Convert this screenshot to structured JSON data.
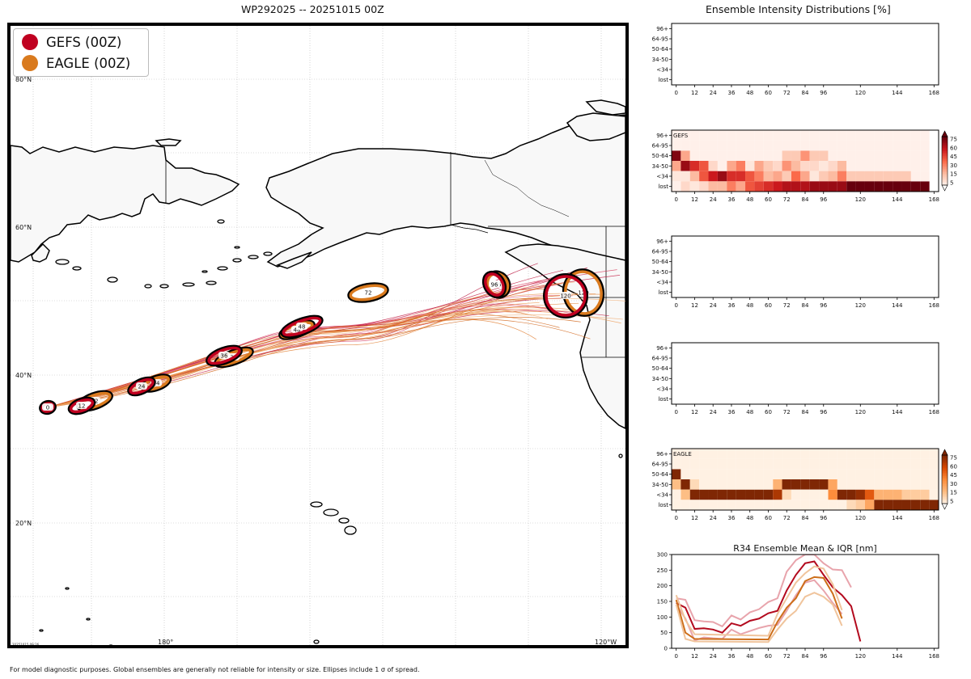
{
  "map_title": "WP292025 -- 20251015 00Z",
  "right_title": "Ensemble Intensity Distributions [%]",
  "legend": [
    {
      "label": "GEFS (00Z)",
      "color": "#c00020"
    },
    {
      "label": "EAGLE (00Z)",
      "color": "#d97a1e"
    }
  ],
  "lat_labels": [
    "80°N",
    "60°N",
    "40°N",
    "20°N"
  ],
  "lon_labels": [
    "180°",
    "120°W"
  ],
  "footer": "For model diagnostic purposes. Global ensembles are generally not reliable for intensity or size. Ellipses include 1 σ of spread.",
  "stamp": "20251015 09:26",
  "chart_data": [
    {
      "type": "map",
      "title": "WP292025 -- 20251015 00Z",
      "series": [
        {
          "name": "GEFS (00Z)",
          "color": "#c00020",
          "track_hours": [
            "0",
            "12",
            "24",
            "36",
            "48",
            "96",
            "120"
          ]
        },
        {
          "name": "EAGLE (00Z)",
          "color": "#d97a1e",
          "track_hours": [
            "0",
            "12",
            "24",
            "36",
            "48",
            "72",
            "96",
            "120"
          ]
        }
      ]
    },
    {
      "type": "heatmap",
      "label": "",
      "colorbar": false,
      "y_categories": [
        "96+",
        "64-95",
        "50-64",
        "34-50",
        "<34",
        "lost"
      ],
      "x_ticks": [
        "0",
        "12",
        "24",
        "36",
        "48",
        "60",
        "72",
        "84",
        "96",
        "120",
        "144",
        "168"
      ],
      "x_range": [
        -3,
        171
      ],
      "cells": []
    },
    {
      "type": "heatmap",
      "label": "GEFS",
      "colormap": "Reds",
      "colorbar": true,
      "colorbar_ticks": [
        "75",
        "60",
        "45",
        "30",
        "15",
        "5"
      ],
      "y_categories": [
        "96+",
        "64-95",
        "50-64",
        "34-50",
        "<34",
        "lost"
      ],
      "x_ticks": [
        "0",
        "12",
        "24",
        "36",
        "48",
        "60",
        "72",
        "84",
        "96",
        "120",
        "144",
        "168"
      ],
      "x_range": [
        -3,
        171
      ],
      "cells": [
        {
          "hour": 0,
          "cat": "50-64",
          "pct": 75
        },
        {
          "hour": 0,
          "cat": "34-50",
          "pct": 25
        },
        {
          "hour": 0,
          "cat": "<34",
          "pct": 5
        },
        {
          "hour": 6,
          "cat": "50-64",
          "pct": 25
        },
        {
          "hour": 6,
          "cat": "34-50",
          "pct": 70
        },
        {
          "hour": 6,
          "cat": "<34",
          "pct": 5
        },
        {
          "hour": 6,
          "cat": "lost",
          "pct": 10
        },
        {
          "hour": 12,
          "cat": "34-50",
          "pct": 55
        },
        {
          "hour": 12,
          "cat": "<34",
          "pct": 20
        },
        {
          "hour": 12,
          "cat": "lost",
          "pct": 5
        },
        {
          "hour": 18,
          "cat": "34-50",
          "pct": 45
        },
        {
          "hour": 18,
          "cat": "<34",
          "pct": 45
        },
        {
          "hour": 18,
          "cat": "lost",
          "pct": 10
        },
        {
          "hour": 24,
          "cat": "34-50",
          "pct": 10
        },
        {
          "hour": 24,
          "cat": "<34",
          "pct": 60
        },
        {
          "hour": 24,
          "cat": "lost",
          "pct": 20
        },
        {
          "hour": 30,
          "cat": "<34",
          "pct": 70
        },
        {
          "hour": 30,
          "cat": "lost",
          "pct": 20
        },
        {
          "hour": 36,
          "cat": "34-50",
          "pct": 25
        },
        {
          "hour": 36,
          "cat": "<34",
          "pct": 55
        },
        {
          "hour": 36,
          "cat": "lost",
          "pct": 35
        },
        {
          "hour": 42,
          "cat": "34-50",
          "pct": 35
        },
        {
          "hour": 42,
          "cat": "<34",
          "pct": 55
        },
        {
          "hour": 42,
          "cat": "lost",
          "pct": 25
        },
        {
          "hour": 48,
          "cat": "34-50",
          "pct": 5
        },
        {
          "hour": 48,
          "cat": "<34",
          "pct": 45
        },
        {
          "hour": 48,
          "cat": "lost",
          "pct": 45
        },
        {
          "hour": 54,
          "cat": "34-50",
          "pct": 25
        },
        {
          "hour": 54,
          "cat": "<34",
          "pct": 35
        },
        {
          "hour": 54,
          "cat": "lost",
          "pct": 50
        },
        {
          "hour": 60,
          "cat": "34-50",
          "pct": 15
        },
        {
          "hour": 60,
          "cat": "<34",
          "pct": 20
        },
        {
          "hour": 60,
          "cat": "lost",
          "pct": 55
        },
        {
          "hour": 66,
          "cat": "34-50",
          "pct": 10
        },
        {
          "hour": 66,
          "cat": "<34",
          "pct": 25
        },
        {
          "hour": 66,
          "cat": "lost",
          "pct": 60
        },
        {
          "hour": 72,
          "cat": "50-64",
          "pct": 15
        },
        {
          "hour": 72,
          "cat": "34-50",
          "pct": 30
        },
        {
          "hour": 72,
          "cat": "<34",
          "pct": 15
        },
        {
          "hour": 72,
          "cat": "lost",
          "pct": 65
        },
        {
          "hour": 78,
          "cat": "50-64",
          "pct": 15
        },
        {
          "hour": 78,
          "cat": "34-50",
          "pct": 20
        },
        {
          "hour": 78,
          "cat": "<34",
          "pct": 40
        },
        {
          "hour": 78,
          "cat": "lost",
          "pct": 65
        },
        {
          "hour": 84,
          "cat": "50-64",
          "pct": 30
        },
        {
          "hour": 84,
          "cat": "34-50",
          "pct": 10
        },
        {
          "hour": 84,
          "cat": "<34",
          "pct": 25
        },
        {
          "hour": 84,
          "cat": "lost",
          "pct": 65
        },
        {
          "hour": 90,
          "cat": "50-64",
          "pct": 15
        },
        {
          "hour": 90,
          "cat": "34-50",
          "pct": 10
        },
        {
          "hour": 90,
          "cat": "<34",
          "pct": 5
        },
        {
          "hour": 90,
          "cat": "lost",
          "pct": 70
        },
        {
          "hour": 96,
          "cat": "50-64",
          "pct": 15
        },
        {
          "hour": 96,
          "cat": "34-50",
          "pct": 5
        },
        {
          "hour": 96,
          "cat": "<34",
          "pct": 15
        },
        {
          "hour": 96,
          "cat": "lost",
          "pct": 70
        },
        {
          "hour": 102,
          "cat": "34-50",
          "pct": 10
        },
        {
          "hour": 102,
          "cat": "<34",
          "pct": 20
        },
        {
          "hour": 102,
          "cat": "lost",
          "pct": 70
        },
        {
          "hour": 108,
          "cat": "34-50",
          "pct": 20
        },
        {
          "hour": 108,
          "cat": "<34",
          "pct": 35
        },
        {
          "hour": 108,
          "cat": "lost",
          "pct": 70
        },
        {
          "hour": 114,
          "cat": "<34",
          "pct": 15
        },
        {
          "hour": 114,
          "cat": "lost",
          "pct": 80
        },
        {
          "hour": 120,
          "cat": "<34",
          "pct": 15
        },
        {
          "hour": 120,
          "cat": "lost",
          "pct": 80
        },
        {
          "hour": 126,
          "cat": "<34",
          "pct": 15
        },
        {
          "hour": 126,
          "cat": "lost",
          "pct": 80
        },
        {
          "hour": 132,
          "cat": "<34",
          "pct": 15
        },
        {
          "hour": 132,
          "cat": "lost",
          "pct": 80
        },
        {
          "hour": 138,
          "cat": "<34",
          "pct": 15
        },
        {
          "hour": 138,
          "cat": "lost",
          "pct": 80
        },
        {
          "hour": 144,
          "cat": "<34",
          "pct": 15
        },
        {
          "hour": 144,
          "cat": "lost",
          "pct": 80
        },
        {
          "hour": 150,
          "cat": "<34",
          "pct": 15
        },
        {
          "hour": 150,
          "cat": "lost",
          "pct": 80
        },
        {
          "hour": 156,
          "cat": "lost",
          "pct": 80
        },
        {
          "hour": 162,
          "cat": "lost",
          "pct": 80
        }
      ]
    },
    {
      "type": "heatmap",
      "label": "",
      "colorbar": false,
      "y_categories": [
        "96+",
        "64-95",
        "50-64",
        "34-50",
        "<34",
        "lost"
      ],
      "x_ticks": [
        "0",
        "12",
        "24",
        "36",
        "48",
        "60",
        "72",
        "84",
        "96",
        "120",
        "144",
        "168"
      ],
      "x_range": [
        -3,
        171
      ],
      "cells": []
    },
    {
      "type": "heatmap",
      "label": "",
      "colorbar": false,
      "y_categories": [
        "96+",
        "64-95",
        "50-64",
        "34-50",
        "<34",
        "lost"
      ],
      "x_ticks": [
        "0",
        "12",
        "24",
        "36",
        "48",
        "60",
        "72",
        "84",
        "96",
        "120",
        "144",
        "168"
      ],
      "x_range": [
        -3,
        171
      ],
      "cells": []
    },
    {
      "type": "heatmap",
      "label": "EAGLE",
      "colormap": "Oranges",
      "colorbar": true,
      "colorbar_ticks": [
        "75",
        "60",
        "45",
        "30",
        "15",
        "5"
      ],
      "y_categories": [
        "96+",
        "64-95",
        "50-64",
        "34-50",
        "<34",
        "lost"
      ],
      "x_ticks": [
        "0",
        "12",
        "24",
        "36",
        "48",
        "60",
        "72",
        "84",
        "96",
        "120",
        "144",
        "168"
      ],
      "x_range": [
        -3,
        171
      ],
      "cells": [
        {
          "hour": 0,
          "cat": "50-64",
          "pct": 80
        },
        {
          "hour": 0,
          "cat": "34-50",
          "pct": 20
        },
        {
          "hour": 6,
          "cat": "34-50",
          "pct": 80
        },
        {
          "hour": 6,
          "cat": "<34",
          "pct": 20
        },
        {
          "hour": 12,
          "cat": "34-50",
          "pct": 10
        },
        {
          "hour": 12,
          "cat": "<34",
          "pct": 80
        },
        {
          "hour": 18,
          "cat": "<34",
          "pct": 80
        },
        {
          "hour": 24,
          "cat": "<34",
          "pct": 80
        },
        {
          "hour": 30,
          "cat": "<34",
          "pct": 80
        },
        {
          "hour": 36,
          "cat": "<34",
          "pct": 80
        },
        {
          "hour": 42,
          "cat": "<34",
          "pct": 80
        },
        {
          "hour": 48,
          "cat": "<34",
          "pct": 80
        },
        {
          "hour": 54,
          "cat": "<34",
          "pct": 80
        },
        {
          "hour": 60,
          "cat": "<34",
          "pct": 80
        },
        {
          "hour": 66,
          "cat": "34-50",
          "pct": 25
        },
        {
          "hour": 66,
          "cat": "<34",
          "pct": 70
        },
        {
          "hour": 72,
          "cat": "34-50",
          "pct": 80
        },
        {
          "hour": 72,
          "cat": "<34",
          "pct": 10
        },
        {
          "hour": 78,
          "cat": "34-50",
          "pct": 80
        },
        {
          "hour": 84,
          "cat": "34-50",
          "pct": 80
        },
        {
          "hour": 90,
          "cat": "34-50",
          "pct": 80
        },
        {
          "hour": 96,
          "cat": "34-50",
          "pct": 80
        },
        {
          "hour": 102,
          "cat": "34-50",
          "pct": 30
        },
        {
          "hour": 102,
          "cat": "<34",
          "pct": 40
        },
        {
          "hour": 108,
          "cat": "<34",
          "pct": 80
        },
        {
          "hour": 114,
          "cat": "<34",
          "pct": 80
        },
        {
          "hour": 114,
          "cat": "lost",
          "pct": 10
        },
        {
          "hour": 120,
          "cat": "<34",
          "pct": 75
        },
        {
          "hour": 120,
          "cat": "lost",
          "pct": 15
        },
        {
          "hour": 126,
          "cat": "<34",
          "pct": 55
        },
        {
          "hour": 126,
          "cat": "lost",
          "pct": 30
        },
        {
          "hour": 132,
          "cat": "<34",
          "pct": 25
        },
        {
          "hour": 132,
          "cat": "lost",
          "pct": 80
        },
        {
          "hour": 138,
          "cat": "<34",
          "pct": 25
        },
        {
          "hour": 138,
          "cat": "lost",
          "pct": 80
        },
        {
          "hour": 144,
          "cat": "<34",
          "pct": 25
        },
        {
          "hour": 144,
          "cat": "lost",
          "pct": 80
        },
        {
          "hour": 150,
          "cat": "<34",
          "pct": 15
        },
        {
          "hour": 150,
          "cat": "lost",
          "pct": 80
        },
        {
          "hour": 156,
          "cat": "<34",
          "pct": 15
        },
        {
          "hour": 156,
          "cat": "lost",
          "pct": 80
        },
        {
          "hour": 162,
          "cat": "<34",
          "pct": 15
        },
        {
          "hour": 162,
          "cat": "lost",
          "pct": 80
        },
        {
          "hour": 168,
          "cat": "lost",
          "pct": 80
        }
      ]
    },
    {
      "type": "line",
      "title": "R34 Ensemble Mean & IQR [nm]",
      "x_ticks": [
        "0",
        "12",
        "24",
        "36",
        "48",
        "60",
        "72",
        "84",
        "96",
        "120",
        "144",
        "168"
      ],
      "y_ticks": [
        "0",
        "50",
        "100",
        "150",
        "200",
        "250",
        "300"
      ],
      "xlim": [
        -3,
        171
      ],
      "ylim": [
        0,
        300
      ],
      "series": [
        {
          "name": "GEFS mean",
          "color": "#b30a1e",
          "width": 2,
          "x": [
            0,
            6,
            12,
            18,
            24,
            30,
            36,
            42,
            48,
            54,
            60,
            66,
            72,
            78,
            84,
            90,
            96,
            102,
            108,
            114,
            120
          ],
          "y": [
            145,
            130,
            62,
            64,
            60,
            50,
            80,
            72,
            88,
            95,
            112,
            120,
            185,
            235,
            272,
            278,
            235,
            195,
            170,
            135,
            22
          ]
        },
        {
          "name": "GEFS Q75",
          "color": "#e8a4ac",
          "width": 2,
          "x": [
            0,
            6,
            12,
            18,
            24,
            30,
            36,
            42,
            48,
            54,
            60,
            66,
            72,
            78,
            84,
            90,
            96,
            102,
            108,
            114
          ],
          "y": [
            160,
            155,
            90,
            86,
            84,
            70,
            105,
            92,
            115,
            125,
            148,
            160,
            245,
            282,
            300,
            300,
            272,
            252,
            250,
            195
          ]
        },
        {
          "name": "GEFS Q25",
          "color": "#e8a4ac",
          "width": 2,
          "x": [
            0,
            6,
            12,
            18,
            24,
            30,
            36,
            42,
            48,
            54,
            60,
            66,
            72,
            78,
            84,
            90,
            96,
            102,
            108
          ],
          "y": [
            140,
            95,
            25,
            35,
            32,
            30,
            60,
            45,
            55,
            65,
            72,
            75,
            120,
            170,
            210,
            218,
            185,
            145,
            110
          ]
        },
        {
          "name": "EAGLE mean",
          "color": "#cd6e1a",
          "width": 2,
          "x": [
            0,
            6,
            12,
            60,
            66,
            72,
            78,
            84,
            90,
            96,
            102,
            108
          ],
          "y": [
            155,
            50,
            30,
            28,
            85,
            130,
            160,
            215,
            228,
            225,
            175,
            95
          ]
        },
        {
          "name": "EAGLE Q75",
          "color": "#f0c49c",
          "width": 2,
          "x": [
            0,
            6,
            12,
            60,
            66,
            72,
            78,
            84,
            90,
            96,
            102,
            108
          ],
          "y": [
            170,
            90,
            45,
            40,
            110,
            160,
            210,
            240,
            262,
            255,
            205,
            122
          ]
        },
        {
          "name": "EAGLE Q25",
          "color": "#f0c49c",
          "width": 2,
          "x": [
            0,
            6,
            12,
            60,
            66,
            72,
            78,
            84,
            90,
            96,
            102,
            108
          ],
          "y": [
            140,
            30,
            22,
            20,
            60,
            95,
            120,
            165,
            178,
            165,
            140,
            72
          ]
        }
      ]
    }
  ]
}
